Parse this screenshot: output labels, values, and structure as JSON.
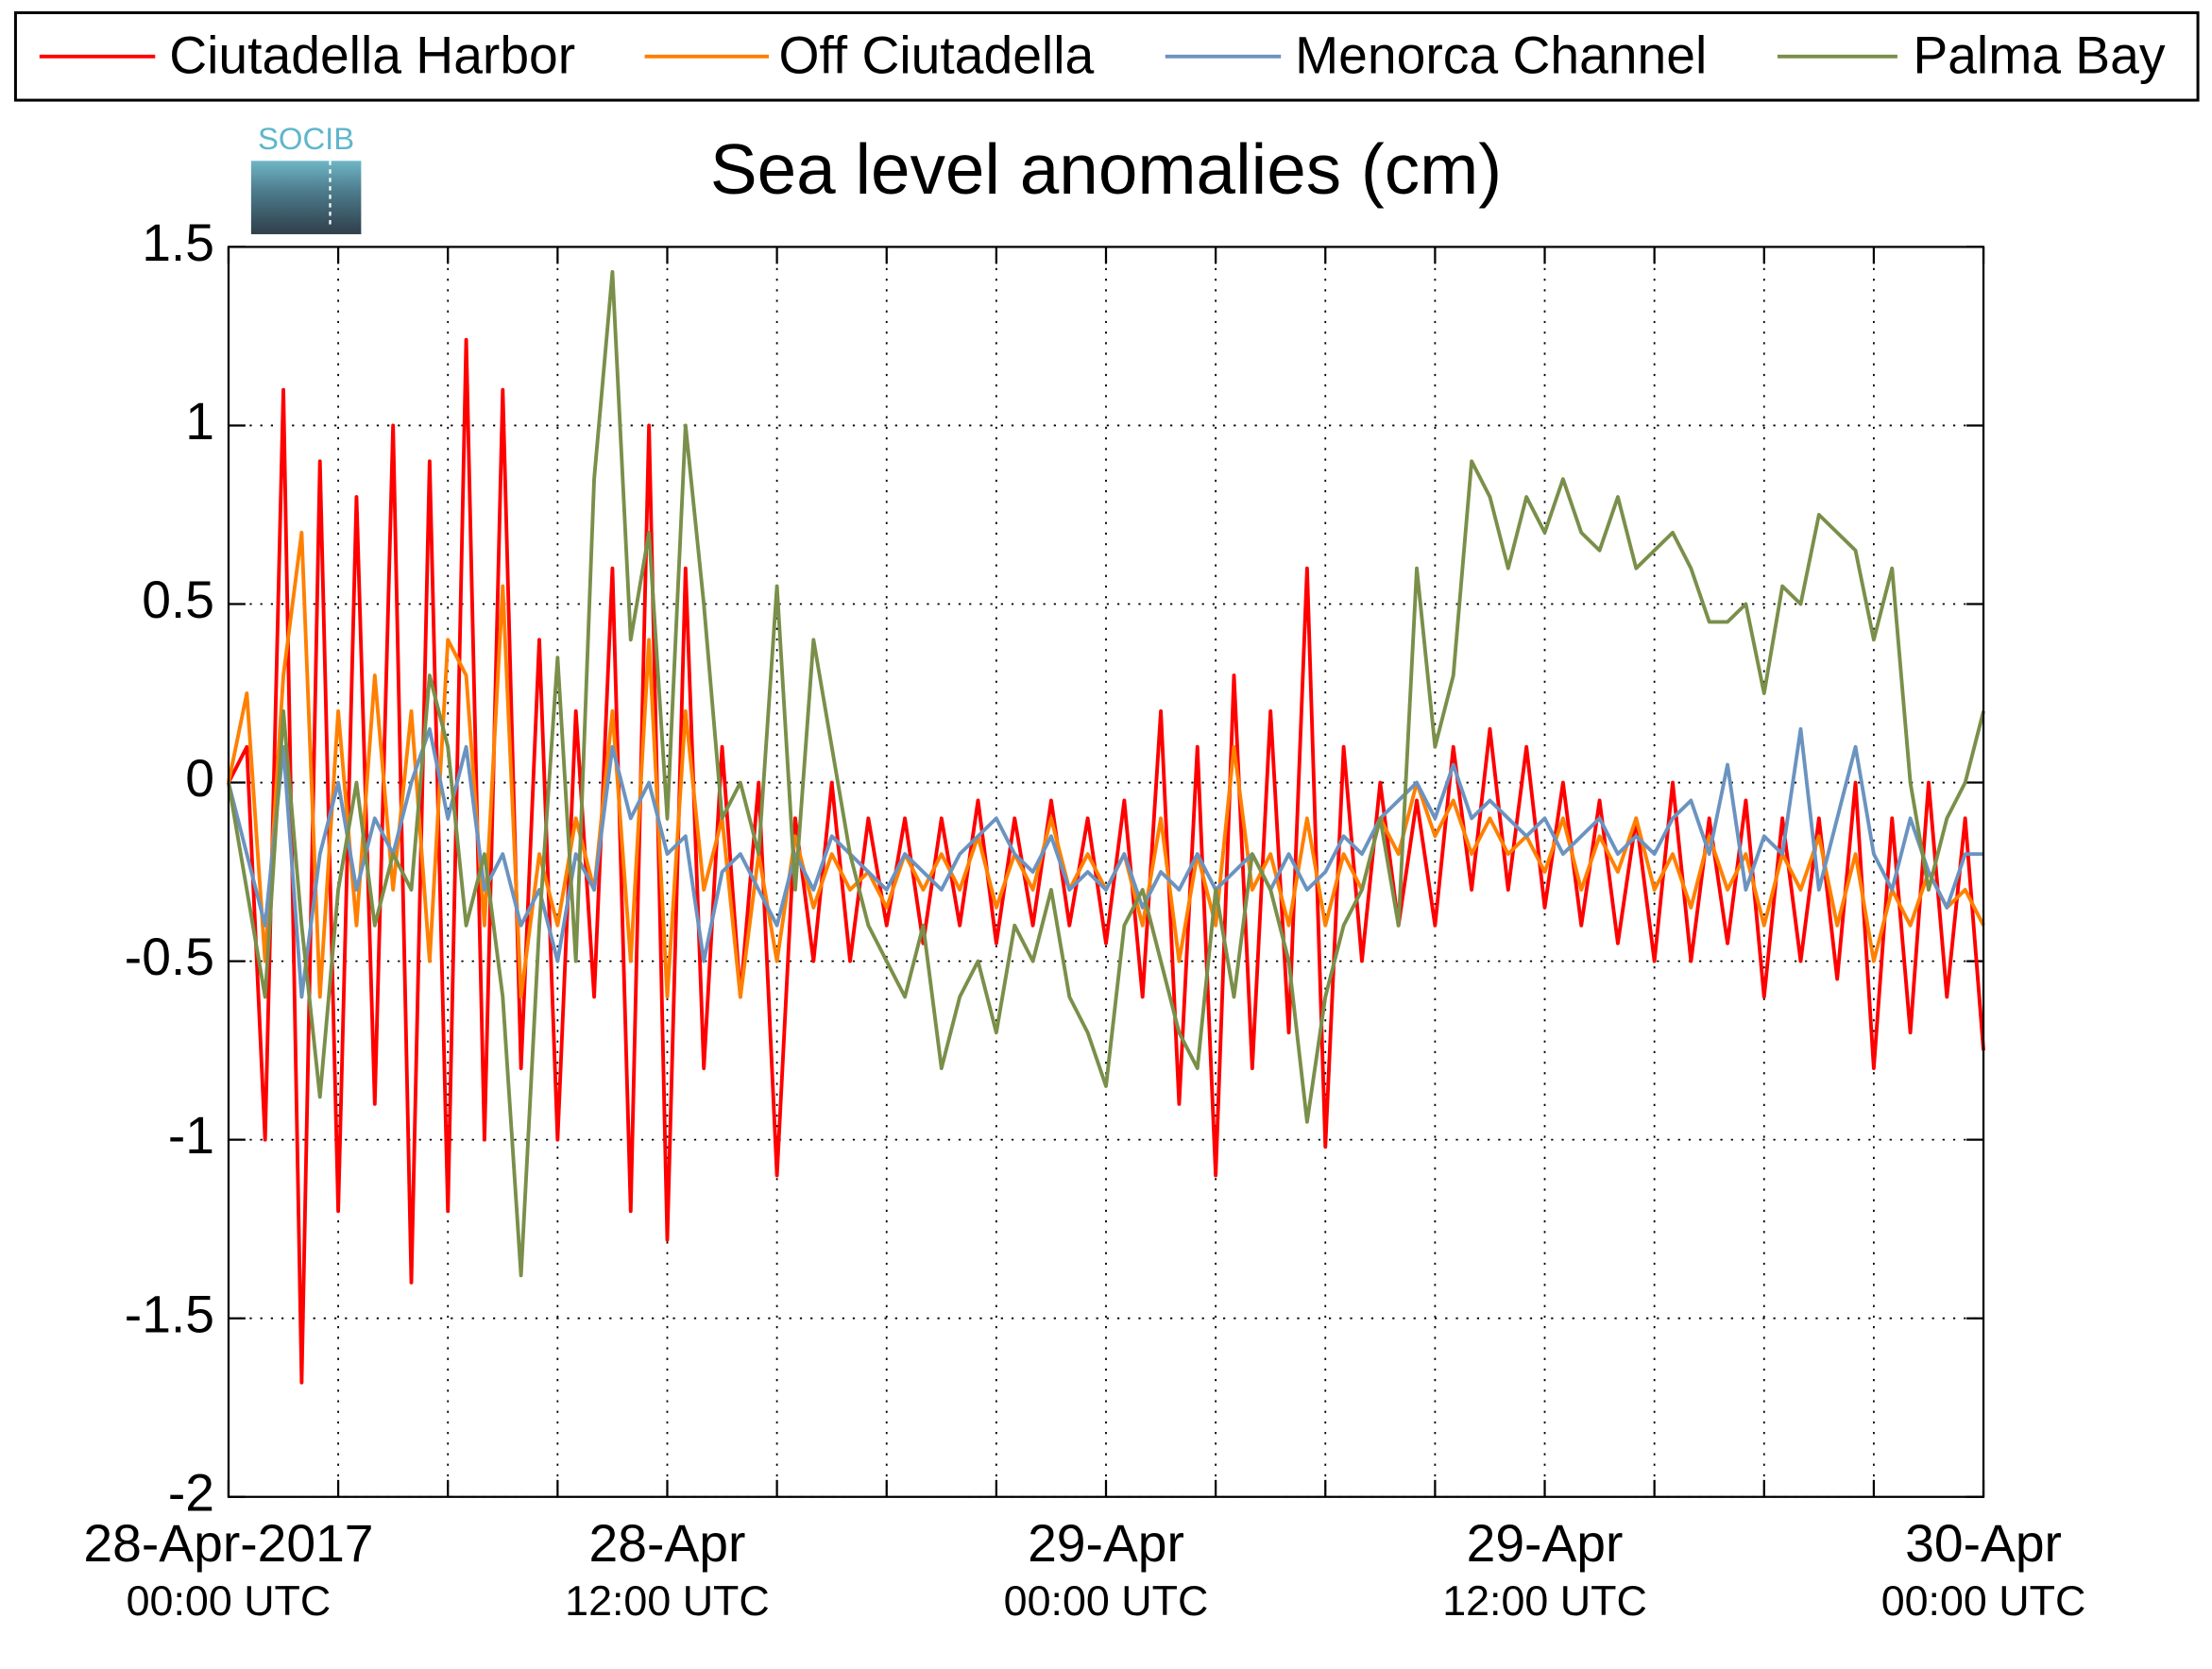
{
  "chart_data": {
    "type": "line",
    "title": "Sea level anomalies (cm)",
    "logo": "SOCIB",
    "legend": "top",
    "grid": true,
    "xlim": [
      0,
      48
    ],
    "xticks": [
      {
        "value": 0,
        "label": [
          "28-Apr-2017",
          "00:00 UTC"
        ]
      },
      {
        "value": 3,
        "label": null
      },
      {
        "value": 6,
        "label": null
      },
      {
        "value": 9,
        "label": null
      },
      {
        "value": 12,
        "label": [
          "28-Apr",
          "12:00 UTC"
        ]
      },
      {
        "value": 15,
        "label": null
      },
      {
        "value": 18,
        "label": null
      },
      {
        "value": 21,
        "label": null
      },
      {
        "value": 24,
        "label": [
          "29-Apr",
          "00:00 UTC"
        ]
      },
      {
        "value": 27,
        "label": null
      },
      {
        "value": 30,
        "label": null
      },
      {
        "value": 33,
        "label": null
      },
      {
        "value": 36,
        "label": [
          "29-Apr",
          "12:00 UTC"
        ]
      },
      {
        "value": 39,
        "label": null
      },
      {
        "value": 42,
        "label": null
      },
      {
        "value": 45,
        "label": null
      },
      {
        "value": 48,
        "label": [
          "30-Apr",
          "00:00 UTC"
        ]
      }
    ],
    "ylim": [
      -2,
      1.5
    ],
    "yticks": [
      -2,
      -1.5,
      -1,
      -0.5,
      0,
      0.5,
      1,
      1.5
    ],
    "x": [
      0,
      0.5,
      1,
      1.5,
      2,
      2.5,
      3,
      3.5,
      4,
      4.5,
      5,
      5.5,
      6,
      6.5,
      7,
      7.5,
      8,
      8.5,
      9,
      9.5,
      10,
      10.5,
      11,
      11.5,
      12,
      12.5,
      13,
      13.5,
      14,
      14.5,
      15,
      15.5,
      16,
      16.5,
      17,
      17.5,
      18,
      18.5,
      19,
      19.5,
      20,
      20.5,
      21,
      21.5,
      22,
      22.5,
      23,
      23.5,
      24,
      24.5,
      25,
      25.5,
      26,
      26.5,
      27,
      27.5,
      28,
      28.5,
      29,
      29.5,
      30,
      30.5,
      31,
      31.5,
      32,
      32.5,
      33,
      33.5,
      34,
      34.5,
      35,
      35.5,
      36,
      36.5,
      37,
      37.5,
      38,
      38.5,
      39,
      39.5,
      40,
      40.5,
      41,
      41.5,
      42,
      42.5,
      43,
      43.5,
      44,
      44.5,
      45,
      45.5,
      46,
      46.5,
      47,
      47.5,
      48
    ],
    "series": [
      {
        "name": "Ciutadella Harbor",
        "color": "#ff0000",
        "values": [
          0,
          0.1,
          -1.0,
          1.1,
          -1.68,
          0.9,
          -1.2,
          0.8,
          -0.9,
          1.0,
          -1.4,
          0.9,
          -1.2,
          1.24,
          -1.0,
          1.1,
          -0.8,
          0.4,
          -1.0,
          0.2,
          -0.6,
          0.6,
          -1.2,
          1.0,
          -1.28,
          0.6,
          -0.8,
          0.1,
          -0.6,
          0.0,
          -1.1,
          -0.1,
          -0.5,
          0.0,
          -0.5,
          -0.1,
          -0.4,
          -0.1,
          -0.45,
          -0.1,
          -0.4,
          -0.05,
          -0.45,
          -0.1,
          -0.4,
          -0.05,
          -0.4,
          -0.1,
          -0.45,
          -0.05,
          -0.6,
          0.2,
          -0.9,
          0.1,
          -1.1,
          0.3,
          -0.8,
          0.2,
          -0.7,
          0.6,
          -1.02,
          0.1,
          -0.5,
          0.0,
          -0.4,
          -0.05,
          -0.4,
          0.1,
          -0.3,
          0.15,
          -0.3,
          0.1,
          -0.35,
          0.0,
          -0.4,
          -0.05,
          -0.45,
          -0.1,
          -0.5,
          0.0,
          -0.5,
          -0.1,
          -0.45,
          -0.05,
          -0.6,
          -0.1,
          -0.5,
          -0.1,
          -0.55,
          0.0,
          -0.8,
          -0.1,
          -0.7,
          0.0,
          -0.6,
          -0.1,
          -0.75
        ]
      },
      {
        "name": "Off Ciutadella",
        "color": "#ff8000",
        "values": [
          0,
          0.25,
          -0.5,
          0.3,
          0.7,
          -0.6,
          0.2,
          -0.4,
          0.3,
          -0.3,
          0.2,
          -0.5,
          0.4,
          0.3,
          -0.4,
          0.55,
          -0.6,
          -0.2,
          -0.4,
          -0.1,
          -0.3,
          0.2,
          -0.5,
          0.4,
          -0.6,
          0.2,
          -0.3,
          -0.1,
          -0.6,
          -0.2,
          -0.5,
          -0.15,
          -0.35,
          -0.2,
          -0.3,
          -0.25,
          -0.35,
          -0.2,
          -0.3,
          -0.2,
          -0.3,
          -0.15,
          -0.35,
          -0.2,
          -0.3,
          -0.1,
          -0.3,
          -0.2,
          -0.3,
          -0.2,
          -0.4,
          -0.1,
          -0.5,
          -0.2,
          -0.4,
          0.1,
          -0.3,
          -0.2,
          -0.4,
          -0.1,
          -0.4,
          -0.2,
          -0.3,
          -0.1,
          -0.2,
          0.0,
          -0.15,
          -0.05,
          -0.2,
          -0.1,
          -0.2,
          -0.15,
          -0.25,
          -0.1,
          -0.3,
          -0.15,
          -0.25,
          -0.1,
          -0.3,
          -0.2,
          -0.35,
          -0.15,
          -0.3,
          -0.2,
          -0.4,
          -0.2,
          -0.3,
          -0.15,
          -0.4,
          -0.2,
          -0.5,
          -0.3,
          -0.4,
          -0.25,
          -0.35,
          -0.3,
          -0.4
        ]
      },
      {
        "name": "Menorca Channel",
        "color": "#6b93c0",
        "values": [
          0,
          -0.2,
          -0.4,
          0.1,
          -0.6,
          -0.2,
          0.0,
          -0.3,
          -0.1,
          -0.2,
          0.0,
          0.15,
          -0.1,
          0.1,
          -0.3,
          -0.2,
          -0.4,
          -0.3,
          -0.5,
          -0.2,
          -0.3,
          0.1,
          -0.1,
          0.0,
          -0.2,
          -0.15,
          -0.5,
          -0.25,
          -0.2,
          -0.3,
          -0.4,
          -0.2,
          -0.3,
          -0.15,
          -0.2,
          -0.25,
          -0.3,
          -0.2,
          -0.25,
          -0.3,
          -0.2,
          -0.15,
          -0.1,
          -0.2,
          -0.25,
          -0.15,
          -0.3,
          -0.25,
          -0.3,
          -0.2,
          -0.35,
          -0.25,
          -0.3,
          -0.2,
          -0.3,
          -0.25,
          -0.2,
          -0.3,
          -0.2,
          -0.3,
          -0.25,
          -0.15,
          -0.2,
          -0.1,
          -0.05,
          0.0,
          -0.1,
          0.05,
          -0.1,
          -0.05,
          -0.1,
          -0.15,
          -0.1,
          -0.2,
          -0.15,
          -0.1,
          -0.2,
          -0.15,
          -0.2,
          -0.1,
          -0.05,
          -0.2,
          0.05,
          -0.3,
          -0.15,
          -0.2,
          0.15,
          -0.3,
          -0.1,
          0.1,
          -0.2,
          -0.3,
          -0.1,
          -0.25,
          -0.35,
          -0.2,
          -0.2
        ]
      },
      {
        "name": "Palma Bay",
        "color": "#7a8f4a",
        "values": [
          0,
          -0.3,
          -0.6,
          0.2,
          -0.4,
          -0.88,
          -0.3,
          0.0,
          -0.4,
          -0.2,
          -0.3,
          0.3,
          0.1,
          -0.4,
          -0.2,
          -0.6,
          -1.38,
          -0.4,
          0.35,
          -0.5,
          0.85,
          1.43,
          0.4,
          0.7,
          -0.1,
          1.0,
          0.5,
          -0.1,
          0.0,
          -0.2,
          0.55,
          -0.3,
          0.4,
          0.1,
          -0.2,
          -0.4,
          -0.5,
          -0.6,
          -0.4,
          -0.8,
          -0.6,
          -0.5,
          -0.7,
          -0.4,
          -0.5,
          -0.3,
          -0.6,
          -0.7,
          -0.85,
          -0.4,
          -0.3,
          -0.5,
          -0.7,
          -0.8,
          -0.3,
          -0.6,
          -0.2,
          -0.3,
          -0.5,
          -0.95,
          -0.6,
          -0.4,
          -0.3,
          -0.1,
          -0.4,
          0.6,
          0.1,
          0.3,
          0.9,
          0.8,
          0.6,
          0.8,
          0.7,
          0.85,
          0.7,
          0.65,
          0.8,
          0.6,
          0.65,
          0.7,
          0.6,
          0.45,
          0.45,
          0.5,
          0.25,
          0.55,
          0.5,
          0.75,
          0.7,
          0.65,
          0.4,
          0.6,
          0.0,
          -0.3,
          -0.1,
          0.0,
          0.2
        ]
      }
    ]
  }
}
